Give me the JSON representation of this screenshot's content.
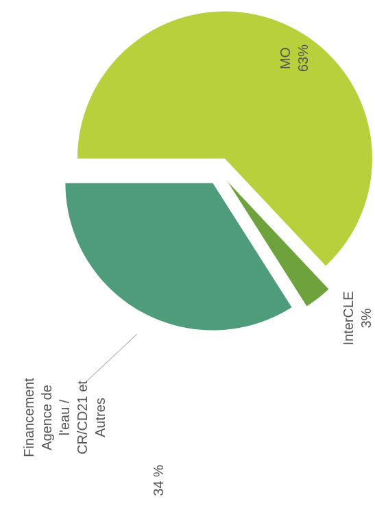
{
  "chart_data": {
    "type": "pie",
    "categories": [
      "MO",
      "InterCLE",
      "Financement Agence de l'eau / CR/CD21 et Autres"
    ],
    "values": [
      63,
      3,
      34
    ],
    "value_labels": [
      "63%",
      "3%",
      "34 %"
    ],
    "colors": [
      "#b7d03c",
      "#6ea23c",
      "#4e9c7c"
    ]
  }
}
